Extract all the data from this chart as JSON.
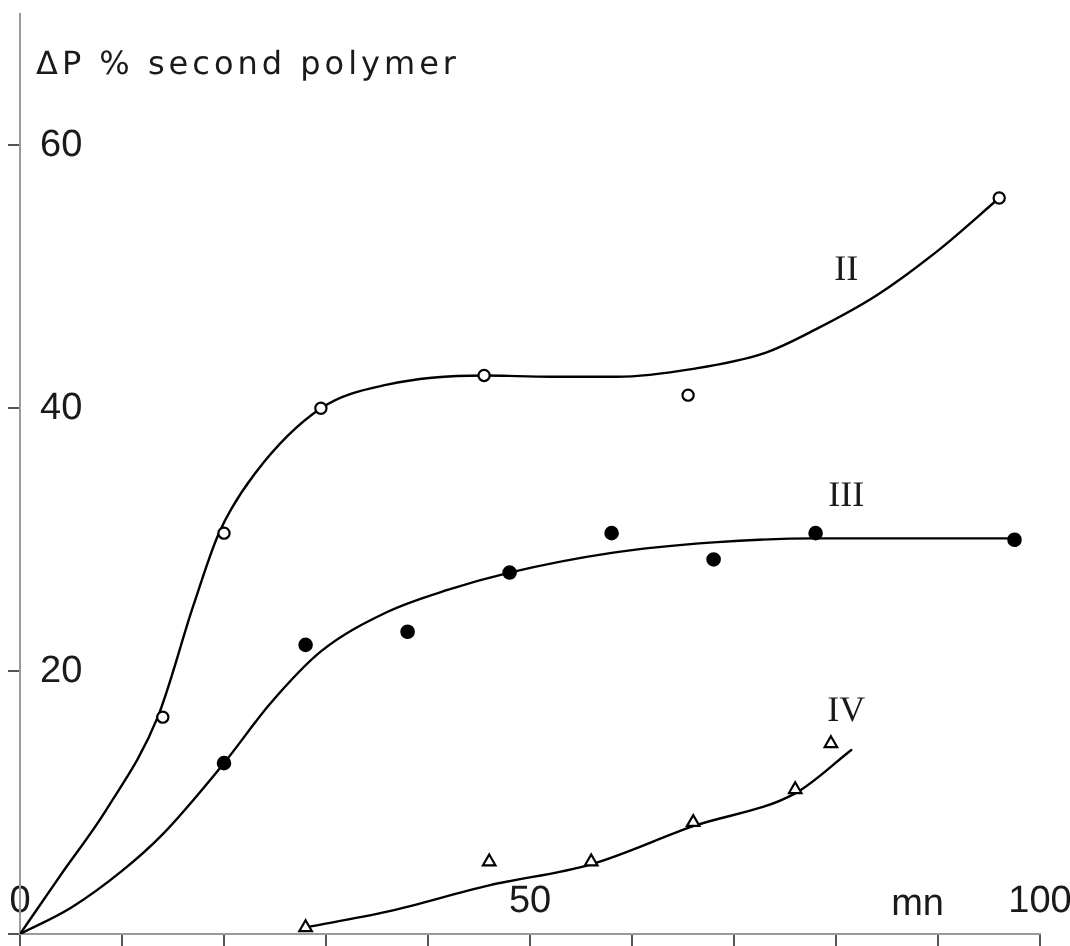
{
  "chart_data": {
    "type": "scatter",
    "ylabel": "ΔP % second polymer",
    "xlabel": "mn",
    "xlim": [
      0,
      100
    ],
    "ylim": [
      0,
      70
    ],
    "xticks": [
      0,
      {
        "value": 10,
        "label": null
      },
      {
        "value": 20,
        "label": null
      },
      {
        "value": 30,
        "label": null
      },
      {
        "value": 40,
        "label": null
      },
      50,
      {
        "value": 60,
        "label": null
      },
      {
        "value": 70,
        "label": null
      },
      {
        "value": 80,
        "label": null
      },
      {
        "value": 90,
        "label": null
      },
      100
    ],
    "yticks": [
      {
        "value": 0,
        "label": null
      },
      20,
      40,
      60
    ],
    "series": [
      {
        "name": "II",
        "type": "line",
        "color": "#000000",
        "marker": "none",
        "x": [
          0,
          4,
          8.5,
          13.5,
          17,
          19.5,
          23,
          29.5,
          36,
          45.5,
          52,
          58.5,
          66,
          73,
          78,
          84,
          90,
          96
        ],
        "values": [
          0,
          4.5,
          9.5,
          16.5,
          25,
          30.5,
          35,
          40,
          41.8,
          42.5,
          42.4,
          42.4,
          43,
          44.2,
          46,
          48.6,
          52,
          56
        ]
      },
      {
        "color": "#000000",
        "marker": "circle",
        "x": [
          14,
          20,
          29.5,
          45.5,
          65.5,
          96
        ],
        "values": [
          16.5,
          30.5,
          40,
          42.5,
          41,
          56
        ]
      },
      {
        "name": "III",
        "type": "line",
        "color": "#000000",
        "marker": "none",
        "x": [
          0,
          5,
          10,
          14,
          20,
          24.5,
          29.5,
          36,
          42,
          48,
          58,
          68,
          78,
          97.5
        ],
        "values": [
          0,
          2,
          4.8,
          7.6,
          13,
          17.5,
          21.5,
          24.5,
          26.2,
          27.5,
          29,
          29.8,
          30.1,
          30.1
        ]
      },
      {
        "color": "#000000",
        "marker": "circle",
        "x": [
          20,
          28,
          38,
          48,
          58,
          68,
          78,
          97.5
        ],
        "values": [
          13,
          22,
          23,
          27.5,
          30.5,
          28.5,
          30.5,
          30
        ]
      },
      {
        "name": "IV",
        "type": "line",
        "color": "#000000",
        "marker": "none",
        "x": [
          28,
          36,
          46,
          56,
          66,
          76,
          81.5
        ],
        "values": [
          0.5,
          1.7,
          3.7,
          5.3,
          8.2,
          10.7,
          14
        ]
      },
      {
        "color": "#000000",
        "marker": "triangle",
        "x": [
          28,
          46,
          56,
          66,
          76,
          79.5
        ],
        "values": [
          0.5,
          5.5,
          5.5,
          8.5,
          11,
          14.5
        ]
      }
    ]
  }
}
